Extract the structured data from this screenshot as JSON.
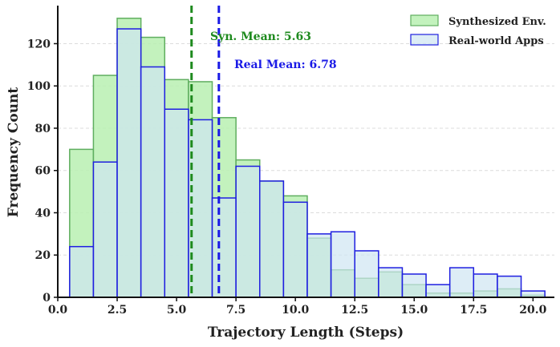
{
  "chart_data": {
    "type": "bar",
    "subtype": "overlapping-histogram",
    "title": "",
    "xlabel": "Trajectory Length (Steps)",
    "ylabel": "Frequency Count",
    "xlim": [
      0,
      20.9
    ],
    "ylim": [
      0,
      138
    ],
    "xticks": [
      0.0,
      2.5,
      5.0,
      7.5,
      10.0,
      12.5,
      15.0,
      17.5,
      20.0
    ],
    "xtick_labels": [
      "0.0",
      "2.5",
      "5.0",
      "7.5",
      "10.0",
      "12.5",
      "15.0",
      "17.5",
      "20.0"
    ],
    "yticks": [
      0,
      20,
      40,
      60,
      80,
      100,
      120
    ],
    "ytick_labels": [
      "0",
      "20",
      "40",
      "60",
      "80",
      "100",
      "120"
    ],
    "grid": true,
    "legend_position": "top-right",
    "bin_edges": [
      0.5,
      1.5,
      2.5,
      3.5,
      4.5,
      5.5,
      6.5,
      7.5,
      8.5,
      9.5,
      10.5,
      11.5,
      12.5,
      13.5,
      14.5,
      15.5,
      16.5,
      17.5,
      18.5,
      19.5,
      20.5
    ],
    "series": [
      {
        "name": "Synthesized Env.",
        "fill": "#b9f0b2",
        "stroke": "#5fae5f",
        "values": [
          70,
          105,
          132,
          123,
          103,
          102,
          85,
          65,
          55,
          48,
          28,
          13,
          9,
          12,
          6,
          2,
          2,
          3,
          4,
          1
        ]
      },
      {
        "name": "Real-world Apps",
        "fill": "#cfe6f2",
        "stroke": "#1f1fe0",
        "values": [
          24,
          64,
          127,
          109,
          89,
          84,
          47,
          62,
          55,
          45,
          30,
          31,
          22,
          14,
          11,
          6,
          14,
          11,
          10,
          3
        ]
      }
    ],
    "mean_lines": [
      {
        "label": "Syn. Mean: 5.63",
        "value": 5.63,
        "color": "#1e8a1e"
      },
      {
        "label": "Real Mean: 6.78",
        "value": 6.78,
        "color": "#1a1ae6"
      }
    ]
  }
}
